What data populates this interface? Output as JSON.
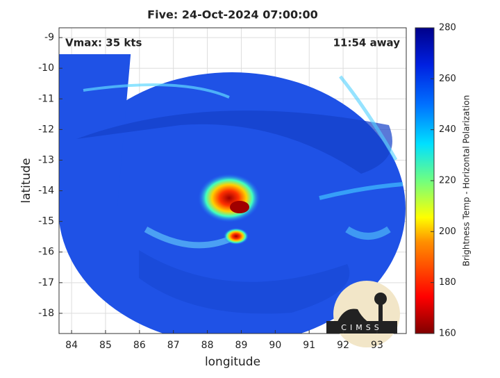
{
  "title": "Five: 24-Oct-2024 07:00:00",
  "annotations": {
    "vmax": "Vmax: 35 kts",
    "away": "11:54 away"
  },
  "map": {
    "xlabel": "longitude",
    "ylabel": "latitude",
    "xlim": [
      83.63,
      93.86
    ],
    "ylim": [
      -18.66,
      -8.68
    ],
    "xticks": [
      84,
      85,
      86,
      87,
      88,
      89,
      90,
      91,
      92,
      93
    ],
    "yticks": [
      -9,
      -10,
      -11,
      -12,
      -13,
      -14,
      -15,
      -16,
      -17,
      -18
    ],
    "grid": true
  },
  "colorbar": {
    "label": "Brightness Temp - Horizontal Polarization",
    "lim": [
      160,
      280
    ],
    "ticks": [
      160,
      180,
      200,
      220,
      240,
      260,
      280
    ]
  },
  "logo": "CIMSS"
}
